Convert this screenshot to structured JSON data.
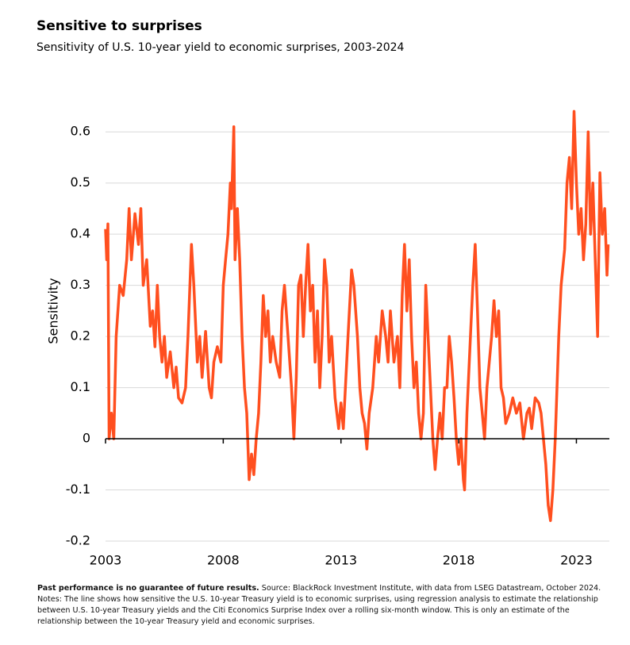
{
  "chart_data": {
    "type": "line",
    "title": "Sensitive to surprises",
    "subtitle": "Sensitivity of U.S. 10-year yield to economic surprises, 2003-2024",
    "y_label": "Sensitivity",
    "color": "#ff4f1f",
    "grid": true,
    "xlim": [
      2003,
      2024.4
    ],
    "xticks": [
      2003,
      2008,
      2013,
      2018,
      2023
    ],
    "ylim": [
      -0.2,
      0.65
    ],
    "yticks": [
      -0.2,
      -0.1,
      0,
      0.1,
      0.2,
      0.3,
      0.4,
      0.5,
      0.6
    ],
    "x": [
      2003.0,
      2003.05,
      2003.1,
      2003.15,
      2003.25,
      2003.35,
      2003.45,
      2003.6,
      2003.75,
      2003.9,
      2004.0,
      2004.1,
      2004.25,
      2004.4,
      2004.5,
      2004.6,
      2004.75,
      2004.9,
      2005.0,
      2005.1,
      2005.2,
      2005.3,
      2005.4,
      2005.5,
      2005.6,
      2005.75,
      2005.9,
      2006.0,
      2006.1,
      2006.25,
      2006.4,
      2006.5,
      2006.65,
      2006.75,
      2006.9,
      2007.0,
      2007.1,
      2007.25,
      2007.4,
      2007.5,
      2007.6,
      2007.75,
      2007.9,
      2008.0,
      2008.1,
      2008.2,
      2008.3,
      2008.35,
      2008.45,
      2008.5,
      2008.6,
      2008.7,
      2008.8,
      2008.9,
      2009.0,
      2009.1,
      2009.2,
      2009.3,
      2009.4,
      2009.5,
      2009.6,
      2009.7,
      2009.8,
      2009.9,
      2010.0,
      2010.1,
      2010.25,
      2010.4,
      2010.5,
      2010.6,
      2010.75,
      2010.9,
      2011.0,
      2011.1,
      2011.2,
      2011.3,
      2011.4,
      2011.5,
      2011.6,
      2011.7,
      2011.8,
      2011.9,
      2012.0,
      2012.1,
      2012.2,
      2012.3,
      2012.4,
      2012.5,
      2012.6,
      2012.75,
      2012.9,
      2013.0,
      2013.1,
      2013.3,
      2013.45,
      2013.55,
      2013.7,
      2013.8,
      2013.9,
      2014.0,
      2014.1,
      2014.2,
      2014.35,
      2014.5,
      2014.6,
      2014.75,
      2014.9,
      2015.0,
      2015.1,
      2015.25,
      2015.4,
      2015.5,
      2015.6,
      2015.7,
      2015.8,
      2015.9,
      2016.0,
      2016.1,
      2016.2,
      2016.3,
      2016.4,
      2016.5,
      2016.6,
      2016.7,
      2016.8,
      2016.9,
      2017.0,
      2017.1,
      2017.2,
      2017.3,
      2017.4,
      2017.5,
      2017.6,
      2017.7,
      2017.8,
      2017.9,
      2018.0,
      2018.1,
      2018.2,
      2018.25,
      2018.35,
      2018.5,
      2018.6,
      2018.7,
      2018.8,
      2018.9,
      2019.0,
      2019.1,
      2019.2,
      2019.4,
      2019.5,
      2019.6,
      2019.7,
      2019.8,
      2019.9,
      2020.0,
      2020.15,
      2020.3,
      2020.45,
      2020.6,
      2020.75,
      2020.9,
      2021.0,
      2021.1,
      2021.25,
      2021.4,
      2021.5,
      2021.6,
      2021.7,
      2021.8,
      2021.9,
      2022.0,
      2022.1,
      2022.25,
      2022.35,
      2022.5,
      2022.6,
      2022.7,
      2022.8,
      2022.9,
      2023.0,
      2023.1,
      2023.2,
      2023.3,
      2023.4,
      2023.5,
      2023.6,
      2023.7,
      2023.8,
      2023.9,
      2024.0,
      2024.1,
      2024.2,
      2024.3,
      2024.35
    ],
    "values": [
      0.41,
      0.35,
      0.42,
      0.0,
      0.05,
      0.0,
      0.2,
      0.3,
      0.28,
      0.35,
      0.45,
      0.35,
      0.44,
      0.38,
      0.45,
      0.3,
      0.35,
      0.22,
      0.25,
      0.18,
      0.3,
      0.2,
      0.15,
      0.2,
      0.12,
      0.17,
      0.1,
      0.14,
      0.08,
      0.07,
      0.1,
      0.2,
      0.38,
      0.3,
      0.15,
      0.2,
      0.12,
      0.21,
      0.1,
      0.08,
      0.15,
      0.18,
      0.15,
      0.3,
      0.35,
      0.4,
      0.5,
      0.45,
      0.61,
      0.35,
      0.45,
      0.35,
      0.2,
      0.1,
      0.05,
      -0.08,
      -0.03,
      -0.07,
      0.0,
      0.05,
      0.15,
      0.28,
      0.2,
      0.25,
      0.15,
      0.2,
      0.15,
      0.12,
      0.25,
      0.3,
      0.2,
      0.1,
      0.0,
      0.12,
      0.3,
      0.32,
      0.2,
      0.3,
      0.38,
      0.25,
      0.3,
      0.15,
      0.25,
      0.1,
      0.2,
      0.35,
      0.3,
      0.15,
      0.2,
      0.08,
      0.02,
      0.07,
      0.02,
      0.2,
      0.33,
      0.3,
      0.2,
      0.1,
      0.05,
      0.03,
      -0.02,
      0.05,
      0.1,
      0.2,
      0.15,
      0.25,
      0.2,
      0.15,
      0.25,
      0.15,
      0.2,
      0.1,
      0.28,
      0.38,
      0.25,
      0.35,
      0.2,
      0.1,
      0.15,
      0.05,
      0.0,
      0.05,
      0.3,
      0.2,
      0.1,
      0.0,
      -0.06,
      0.0,
      0.05,
      0.0,
      0.1,
      0.1,
      0.2,
      0.15,
      0.08,
      0.0,
      -0.05,
      0.0,
      -0.08,
      -0.1,
      0.05,
      0.2,
      0.3,
      0.38,
      0.25,
      0.1,
      0.05,
      0.0,
      0.1,
      0.2,
      0.27,
      0.2,
      0.25,
      0.1,
      0.08,
      0.03,
      0.05,
      0.08,
      0.05,
      0.07,
      0.0,
      0.05,
      0.06,
      0.02,
      0.08,
      0.07,
      0.05,
      0.0,
      -0.05,
      -0.13,
      -0.16,
      -0.1,
      0.0,
      0.2,
      0.3,
      0.37,
      0.5,
      0.55,
      0.45,
      0.64,
      0.5,
      0.4,
      0.45,
      0.35,
      0.42,
      0.6,
      0.4,
      0.5,
      0.35,
      0.2,
      0.52,
      0.4,
      0.45,
      0.32,
      0.38
    ]
  },
  "footnote": {
    "lead": "Past performance is no guarantee of future results.",
    "text": "Source: BlackRock Investment Institute, with data from LSEG Datastream, October 2024. Notes: The line shows how sensitive the U.S. 10-year Treasury yield is to economic surprises, using regression analysis to estimate the relationship between U.S. 10-year Treasury yields and the Citi Economics Surprise Index over a rolling six-month window. This is only an estimate of the relationship between the 10-year Treasury yield and economic surprises."
  }
}
